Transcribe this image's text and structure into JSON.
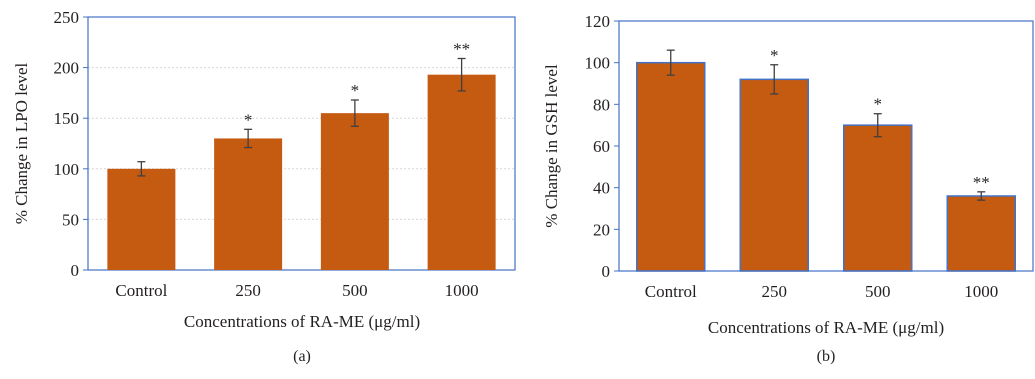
{
  "colors": {
    "bar_fill": "#c55a11",
    "bar_stroke_b": "#4472c4",
    "frame": "#4472c4",
    "grid": "#d9d9d9",
    "error_bar": "#404040",
    "text": "#231f20"
  },
  "chart_data": [
    {
      "type": "bar",
      "panel_label": "(a)",
      "categories": [
        "Control",
        "250",
        "500",
        "1000"
      ],
      "values": [
        100,
        130,
        155,
        193
      ],
      "errors": [
        7,
        9,
        13,
        16
      ],
      "significance": [
        "",
        "*",
        "*",
        "**"
      ],
      "title": "",
      "xlabel": "Concentrations of RA-ME (μg/ml)",
      "ylabel": "% Change in LPO level",
      "ylim": [
        0,
        250
      ],
      "yticks": [
        "0",
        "50",
        "100",
        "150",
        "200",
        "250"
      ],
      "grid": true,
      "legend": "none"
    },
    {
      "type": "bar",
      "panel_label": "(b)",
      "categories": [
        "Control",
        "250",
        "500",
        "1000"
      ],
      "values": [
        100,
        92,
        70,
        36
      ],
      "errors": [
        6,
        7,
        5.5,
        2
      ],
      "significance": [
        "",
        "*",
        "*",
        "**"
      ],
      "title": "",
      "xlabel": "Concentrations of RA-ME (μg/ml)",
      "ylabel": "% Change in GSH level",
      "ylim": [
        0,
        120
      ],
      "yticks": [
        "0",
        "20",
        "40",
        "60",
        "80",
        "100",
        "120"
      ],
      "grid": false,
      "legend": "none"
    }
  ]
}
